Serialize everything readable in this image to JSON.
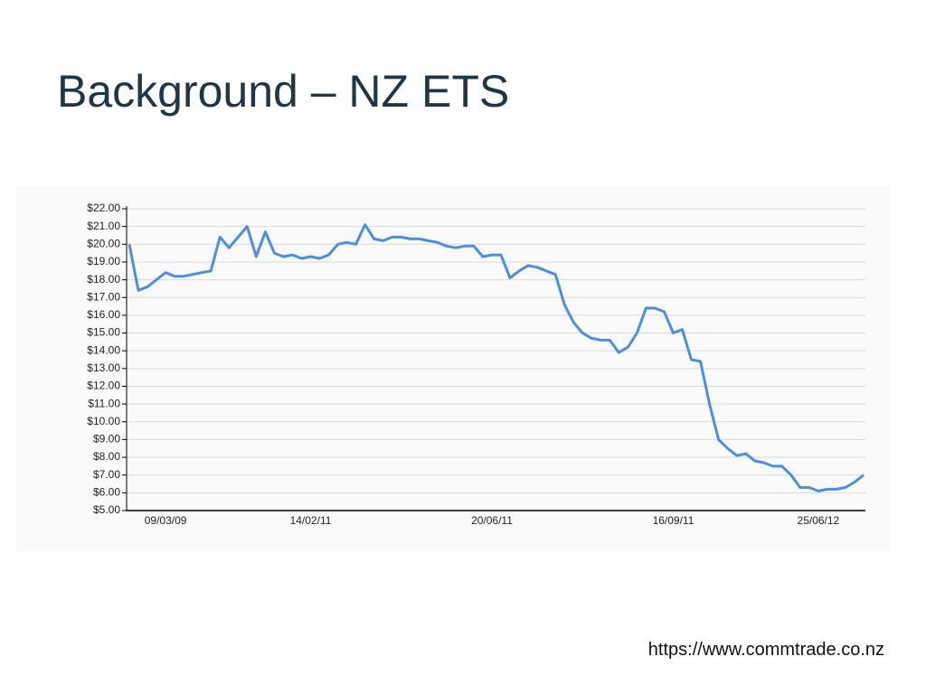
{
  "title": "Background – NZ ETS",
  "source": "https://www.commtrade.co.nz",
  "chart_data": {
    "type": "line",
    "color": "#4a8ee6",
    "grid": true,
    "categories": [
      null,
      null,
      null,
      null,
      "09/03/09",
      null,
      null,
      null,
      null,
      null,
      null,
      null,
      null,
      null,
      null,
      null,
      null,
      null,
      null,
      null,
      "14/02/11",
      null,
      null,
      null,
      null,
      null,
      null,
      null,
      null,
      null,
      null,
      null,
      null,
      null,
      null,
      null,
      null,
      null,
      null,
      null,
      "20/06/11",
      null,
      null,
      null,
      null,
      null,
      null,
      null,
      null,
      null,
      null,
      null,
      null,
      null,
      null,
      null,
      null,
      null,
      null,
      null,
      "16/09/11",
      null,
      null,
      null,
      null,
      null,
      null,
      null,
      null,
      null,
      null,
      null,
      null,
      null,
      null,
      null,
      "25/06/12",
      null,
      null,
      null,
      null,
      null
    ],
    "values": [
      20.0,
      17.4,
      17.6,
      18.0,
      18.4,
      18.2,
      18.2,
      18.3,
      18.4,
      18.5,
      20.4,
      19.8,
      20.4,
      21.0,
      19.3,
      20.7,
      19.5,
      19.3,
      19.4,
      19.2,
      19.3,
      19.2,
      19.4,
      20.0,
      20.1,
      20.0,
      21.1,
      20.3,
      20.2,
      20.4,
      20.4,
      20.3,
      20.3,
      20.2,
      20.1,
      19.9,
      19.8,
      19.9,
      19.9,
      19.3,
      19.4,
      19.4,
      18.1,
      18.5,
      18.8,
      18.7,
      18.5,
      18.3,
      16.6,
      15.6,
      15.0,
      14.7,
      14.6,
      14.6,
      13.9,
      14.2,
      15.0,
      16.4,
      16.4,
      16.2,
      15.0,
      15.2,
      13.5,
      13.4,
      11.0,
      9.0,
      8.5,
      8.1,
      8.2,
      7.8,
      7.7,
      7.5,
      7.5,
      7.0,
      6.3,
      6.3,
      6.1,
      6.2,
      6.2,
      6.3,
      6.6,
      7.0
    ],
    "ylim": [
      5,
      22
    ],
    "yticks": [
      {
        "value": 5,
        "label": "$5.00"
      },
      {
        "value": 6,
        "label": "$6.00"
      },
      {
        "value": 7,
        "label": "$7.00"
      },
      {
        "value": 8,
        "label": "$8.00"
      },
      {
        "value": 9,
        "label": "$9.00"
      },
      {
        "value": 10,
        "label": "$10.00"
      },
      {
        "value": 11,
        "label": "$11.00"
      },
      {
        "value": 12,
        "label": "$12.00"
      },
      {
        "value": 13,
        "label": "$13.00"
      },
      {
        "value": 14,
        "label": "$14.00"
      },
      {
        "value": 15,
        "label": "$15.00"
      },
      {
        "value": 16,
        "label": "$16.00"
      },
      {
        "value": 17,
        "label": "$17.00"
      },
      {
        "value": 18,
        "label": "$18.00"
      },
      {
        "value": 19,
        "label": "$19.00"
      },
      {
        "value": 20,
        "label": "$20.00"
      },
      {
        "value": 21,
        "label": "$21.00"
      },
      {
        "value": 22,
        "label": "$22.00"
      }
    ]
  }
}
